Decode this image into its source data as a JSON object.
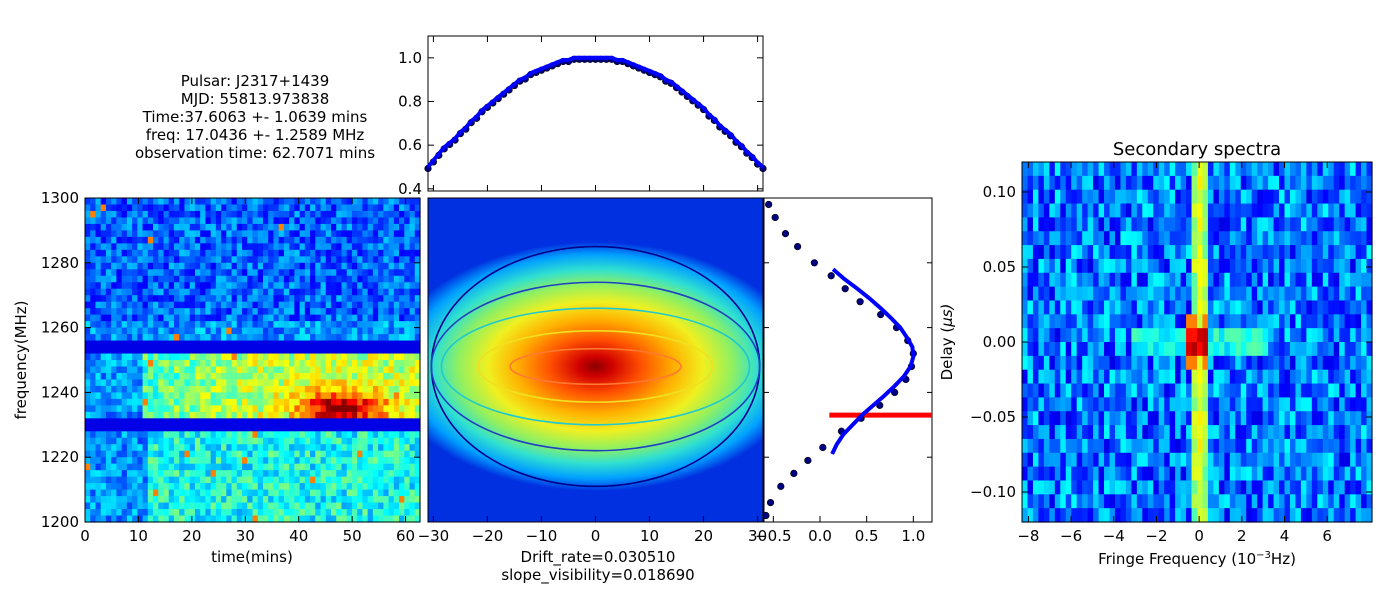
{
  "info": {
    "pulsar": "Pulsar: J2317+1439",
    "mjd": "MJD: 55813.973838",
    "time": "Time:37.6063 +- 1.0639 mins",
    "freq": "freq: 17.0436 +- 1.2589 MHz",
    "obs": "observation time: 62.7071 mins"
  },
  "colors": {
    "fit_line": "#0000ff",
    "points": "#000080",
    "marker_line": "#ff0000"
  },
  "chart_data": [
    {
      "type": "heatmap",
      "id": "dynamic-spectrum",
      "colormap": "jet",
      "xlabel": "time(mins)",
      "ylabel": "frequency(MHz)",
      "xlim": [
        0,
        62.7
      ],
      "ylim": [
        1200,
        1300
      ],
      "x_ticks": [
        "0",
        "10",
        "20",
        "30",
        "40",
        "50",
        "60"
      ],
      "y_ticks": [
        "1200",
        "1220",
        "1240",
        "1260",
        "1280",
        "1300"
      ],
      "masked_bands_mhz": [
        [
          1252,
          1255
        ],
        [
          1229,
          1232
        ]
      ],
      "bright_region": {
        "time": [
          15,
          62
        ],
        "freq": [
          1232,
          1252
        ],
        "peak_time": 48,
        "peak_freq": 1235
      }
    },
    {
      "type": "line",
      "id": "top-profile",
      "xlim": [
        -31,
        31
      ],
      "ylim": [
        0.39,
        1.1
      ],
      "y_ticks": [
        "0.4",
        "0.6",
        "0.8",
        "1.0"
      ],
      "x": [
        -31,
        -30,
        -29,
        -28,
        -27,
        -26,
        -25,
        -24,
        -23,
        -22,
        -21,
        -20,
        -19,
        -18,
        -17,
        -16,
        -15,
        -14,
        -13,
        -12,
        -11,
        -10,
        -9,
        -8,
        -7,
        -6,
        -5,
        -4,
        -3,
        -2,
        -1,
        0,
        1,
        2,
        3,
        4,
        5,
        6,
        7,
        8,
        9,
        10,
        11,
        12,
        13,
        14,
        15,
        16,
        17,
        18,
        19,
        20,
        21,
        22,
        23,
        24,
        25,
        26,
        27,
        28,
        29,
        30,
        31
      ],
      "y": [
        0.5,
        0.53,
        0.56,
        0.59,
        0.61,
        0.63,
        0.66,
        0.68,
        0.71,
        0.73,
        0.76,
        0.78,
        0.8,
        0.82,
        0.84,
        0.86,
        0.88,
        0.9,
        0.91,
        0.93,
        0.94,
        0.95,
        0.96,
        0.97,
        0.98,
        0.99,
        0.99,
        1.0,
        1.0,
        1.0,
        1.0,
        1.0,
        1.0,
        1.0,
        1.0,
        0.99,
        0.99,
        0.98,
        0.97,
        0.96,
        0.95,
        0.94,
        0.93,
        0.92,
        0.9,
        0.89,
        0.87,
        0.85,
        0.83,
        0.81,
        0.79,
        0.77,
        0.74,
        0.72,
        0.69,
        0.67,
        0.65,
        0.62,
        0.6,
        0.57,
        0.55,
        0.52,
        0.5
      ]
    },
    {
      "type": "heatmap",
      "id": "correlation-map",
      "colormap": "jet",
      "xlabel": "Drift_rate=0.030510",
      "xlabel2": "slope_visibility=0.018690",
      "xlim": [
        -31,
        31
      ],
      "x_ticks": [
        "−30",
        "−20",
        "−10",
        "0",
        "10",
        "20",
        "30"
      ],
      "contours": [
        {
          "level": 1,
          "color": "#00008b",
          "rx": 0.98,
          "ry": 0.37
        },
        {
          "level": 2,
          "color": "#2040c0",
          "rx": 0.98,
          "ry": 0.26
        },
        {
          "level": 3,
          "color": "#20c8d0",
          "rx": 0.92,
          "ry": 0.18
        },
        {
          "level": 4,
          "color": "#f0e020",
          "rx": 0.7,
          "ry": 0.11
        },
        {
          "level": 5,
          "color": "#ff7a30",
          "rx": 0.51,
          "ry": 0.055
        }
      ]
    },
    {
      "type": "scatter",
      "id": "right-profile",
      "xlim": [
        -0.6,
        1.2
      ],
      "x_ticks": [
        "−0.5",
        "0.0",
        "0.5",
        "1.0"
      ],
      "points_y_frac": [
        0.02,
        0.06,
        0.11,
        0.15,
        0.2,
        0.24,
        0.28,
        0.32,
        0.36,
        0.4,
        0.44,
        0.48,
        0.52,
        0.56,
        0.6,
        0.64,
        0.68,
        0.72,
        0.77,
        0.81,
        0.85,
        0.89,
        0.94,
        0.98
      ],
      "points_x": [
        -0.55,
        -0.48,
        -0.37,
        -0.24,
        -0.06,
        0.12,
        0.27,
        0.43,
        0.65,
        0.82,
        0.94,
        1.0,
        0.98,
        0.92,
        0.8,
        0.64,
        0.44,
        0.23,
        0.03,
        -0.13,
        -0.28,
        -0.42,
        -0.53,
        -0.58
      ],
      "fit_y_frac": [
        0.22,
        0.25,
        0.28,
        0.31,
        0.34,
        0.37,
        0.4,
        0.43,
        0.46,
        0.49,
        0.52,
        0.55,
        0.58,
        0.61,
        0.64,
        0.67,
        0.7,
        0.73,
        0.76,
        0.79
      ],
      "fit_x": [
        0.14,
        0.26,
        0.4,
        0.53,
        0.65,
        0.76,
        0.86,
        0.93,
        0.99,
        1.0,
        0.97,
        0.9,
        0.8,
        0.69,
        0.57,
        0.45,
        0.35,
        0.25,
        0.18,
        0.13
      ],
      "marker_y_frac": 0.67
    },
    {
      "type": "heatmap",
      "id": "secondary-spectra",
      "colormap": "jet",
      "title": "Secondary spectra",
      "xlabel": "Fringe Frequency ",
      "xlabel_unit": "(10",
      "xlabel_exp": "−3",
      "xlabel_unit2": "Hz)",
      "ylabel": "Delay (",
      "ylabel_unit": "μs)",
      "xlim": [
        -8.3,
        8.1
      ],
      "ylim": [
        -0.12,
        0.12
      ],
      "x_ticks": [
        "−8",
        "−6",
        "−4",
        "−2",
        "0",
        "2",
        "4",
        "6"
      ],
      "x_tick_values": [
        -8,
        -6,
        -4,
        -2,
        0,
        2,
        4,
        6
      ],
      "y_ticks": [
        "0.10",
        "0.05",
        "0.00",
        "−0.05",
        "−0.10"
      ],
      "y_tick_values": [
        0.1,
        0.05,
        0.0,
        -0.05,
        -0.1
      ]
    }
  ]
}
